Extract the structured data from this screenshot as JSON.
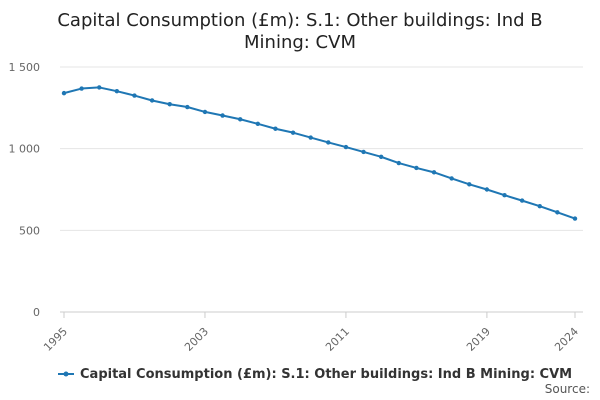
{
  "chart_data": {
    "type": "line",
    "title_lines": [
      "Capital Consumption (£m): S.1: Other buildings: Ind B",
      "Mining: CVM"
    ],
    "xlabel": "",
    "ylabel": "",
    "x": [
      1995,
      1996,
      1997,
      1998,
      1999,
      2000,
      2001,
      2002,
      2003,
      2004,
      2005,
      2006,
      2007,
      2008,
      2009,
      2010,
      2011,
      2012,
      2013,
      2014,
      2015,
      2016,
      2017,
      2018,
      2019,
      2020,
      2021,
      2022,
      2023,
      2024
    ],
    "series": [
      {
        "name": "Capital Consumption (£m): S.1: Other buildings: Ind B Mining: CVM",
        "values": [
          1340,
          1368,
          1375,
          1352,
          1325,
          1295,
          1272,
          1255,
          1225,
          1203,
          1180,
          1152,
          1122,
          1098,
          1068,
          1038,
          1010,
          980,
          950,
          912,
          882,
          855,
          818,
          782,
          750,
          715,
          682,
          648,
          610,
          572
        ]
      }
    ],
    "ylim": [
      0,
      1500
    ],
    "yticks": [
      0,
      500,
      1000,
      1500
    ],
    "ytick_labels": [
      "0",
      "500",
      "1 000",
      "1 500"
    ],
    "xticks": [
      1995,
      2003,
      2011,
      2019,
      2024
    ],
    "xtick_labels": [
      "1995",
      "2003",
      "2011",
      "2019",
      "2024"
    ],
    "grid": true,
    "legend_position": "bottom",
    "source_label": "Source:",
    "colors": {
      "line": "#1f77b4",
      "grid": "#e5e5e5",
      "axis": "#cccccc"
    }
  }
}
